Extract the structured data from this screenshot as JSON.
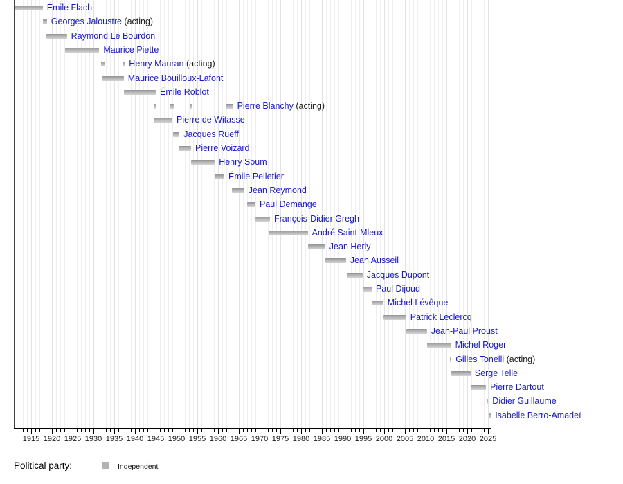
{
  "chart_data": {
    "type": "bar",
    "variant": "gantt-timeline",
    "title": "",
    "x_axis": {
      "unit": "year",
      "min": 1911,
      "max": 2025.7,
      "major_tick_interval": 5,
      "minor_tick_interval": 1,
      "major_tick_labels": [
        "1915",
        "1920",
        "1925",
        "1930",
        "1935",
        "1940",
        "1945",
        "1950",
        "1955",
        "1960",
        "1965",
        "1970",
        "1975",
        "1980",
        "1985",
        "1990",
        "1995",
        "2000",
        "2005",
        "2010",
        "2015",
        "2020",
        "2025"
      ],
      "gridlines": "vertical, one per year"
    },
    "acting_suffix": "(acting)",
    "legend": {
      "label": "Political party:",
      "entries": [
        {
          "label": "Independent",
          "color": "#b3b3b3"
        }
      ]
    },
    "palette": {
      "bar_fill": "#b3b3b3",
      "bar_gradient_top": "#929292",
      "bar_gradient_mid": "#b6b6b6",
      "bar_gradient_bottom": "#d2d2d2",
      "name_link": "#1a1acd",
      "acting_text": "#1c1c1c",
      "grid_line": "#e3e3e3",
      "axis_line": "#000000",
      "plot_left_border": "#3f3f3f",
      "tick_label": "#1a1a1a"
    },
    "series": [
      {
        "name": "Émile Flach",
        "acting": false,
        "party": "Independent",
        "terms": [
          [
            1911.0,
            1917.8
          ]
        ]
      },
      {
        "name": "Georges Jaloustre",
        "acting": true,
        "party": "Independent",
        "terms": [
          [
            1917.8,
            1918.8
          ]
        ]
      },
      {
        "name": "Raymond Le Bourdon",
        "acting": false,
        "party": "Independent",
        "terms": [
          [
            1918.6,
            1923.6
          ]
        ]
      },
      {
        "name": "Maurice Piette",
        "acting": false,
        "party": "Independent",
        "terms": [
          [
            1923.1,
            1931.4
          ]
        ]
      },
      {
        "name": "Henry Mauran",
        "acting": true,
        "party": "Independent",
        "terms": [
          [
            1931.9,
            1932.6
          ],
          [
            1937.2,
            1937.55
          ]
        ]
      },
      {
        "name": "Maurice Bouilloux-Lafont",
        "acting": false,
        "party": "Independent",
        "terms": [
          [
            1932.1,
            1937.3
          ]
        ]
      },
      {
        "name": "Émile Roblot",
        "acting": false,
        "party": "Independent",
        "terms": [
          [
            1937.4,
            1945.0
          ]
        ]
      },
      {
        "name": "Pierre Blanchy",
        "acting": true,
        "party": "Independent",
        "terms": [
          [
            1944.5,
            1945.0
          ],
          [
            1948.4,
            1949.3
          ],
          [
            1953.1,
            1953.7
          ],
          [
            1961.8,
            1963.6
          ]
        ]
      },
      {
        "name": "Pierre de Witasse",
        "acting": false,
        "party": "Independent",
        "terms": [
          [
            1944.5,
            1949.0
          ]
        ]
      },
      {
        "name": "Jacques Rueff",
        "acting": false,
        "party": "Independent",
        "terms": [
          [
            1949.2,
            1950.7
          ]
        ]
      },
      {
        "name": "Pierre Voizard",
        "acting": false,
        "party": "Independent",
        "terms": [
          [
            1950.5,
            1953.5
          ]
        ]
      },
      {
        "name": "Henry Soum",
        "acting": false,
        "party": "Independent",
        "terms": [
          [
            1953.5,
            1959.2
          ]
        ]
      },
      {
        "name": "Émile Pelletier",
        "acting": false,
        "party": "Independent",
        "terms": [
          [
            1959.2,
            1961.5
          ]
        ]
      },
      {
        "name": "Jean Reymond",
        "acting": false,
        "party": "Independent",
        "terms": [
          [
            1963.3,
            1966.3
          ]
        ]
      },
      {
        "name": "Paul Demange",
        "acting": false,
        "party": "Independent",
        "terms": [
          [
            1967.0,
            1969.0
          ]
        ]
      },
      {
        "name": "François-Didier Gregh",
        "acting": false,
        "party": "Independent",
        "terms": [
          [
            1969.0,
            1972.5
          ]
        ]
      },
      {
        "name": "André Saint-Mleux",
        "acting": false,
        "party": "Independent",
        "terms": [
          [
            1972.4,
            1981.6
          ]
        ]
      },
      {
        "name": "Jean Herly",
        "acting": false,
        "party": "Independent",
        "terms": [
          [
            1981.6,
            1985.8
          ]
        ]
      },
      {
        "name": "Jean Ausseil",
        "acting": false,
        "party": "Independent",
        "terms": [
          [
            1985.8,
            1990.8
          ]
        ]
      },
      {
        "name": "Jacques Dupont",
        "acting": false,
        "party": "Independent",
        "terms": [
          [
            1991.0,
            1994.8
          ]
        ]
      },
      {
        "name": "Paul Dijoud",
        "acting": false,
        "party": "Independent",
        "terms": [
          [
            1995.0,
            1997.0
          ]
        ]
      },
      {
        "name": "Michel Lévêque",
        "acting": false,
        "party": "Independent",
        "terms": [
          [
            1997.0,
            1999.8
          ]
        ]
      },
      {
        "name": "Patrick Leclercq",
        "acting": false,
        "party": "Independent",
        "terms": [
          [
            1999.9,
            2005.3
          ]
        ]
      },
      {
        "name": "Jean-Paul Proust",
        "acting": false,
        "party": "Independent",
        "terms": [
          [
            2005.3,
            2010.3
          ]
        ]
      },
      {
        "name": "Michel Roger",
        "acting": false,
        "party": "Independent",
        "terms": [
          [
            2010.3,
            2016.1
          ]
        ]
      },
      {
        "name": "Gilles Tonelli",
        "acting": true,
        "party": "Independent",
        "terms": [
          [
            2015.9,
            2016.2
          ]
        ]
      },
      {
        "name": "Serge Telle",
        "acting": false,
        "party": "Independent",
        "terms": [
          [
            2016.2,
            2020.8
          ]
        ]
      },
      {
        "name": "Pierre Dartout",
        "acting": false,
        "party": "Independent",
        "terms": [
          [
            2020.8,
            2024.5
          ]
        ]
      },
      {
        "name": "Didier Guillaume",
        "acting": false,
        "party": "Independent",
        "terms": [
          [
            2024.7,
            2025.05
          ]
        ]
      },
      {
        "name": "Isabelle Berro-Amadeï",
        "acting": false,
        "party": "Independent",
        "terms": [
          [
            2025.1,
            2025.7
          ]
        ]
      }
    ]
  }
}
